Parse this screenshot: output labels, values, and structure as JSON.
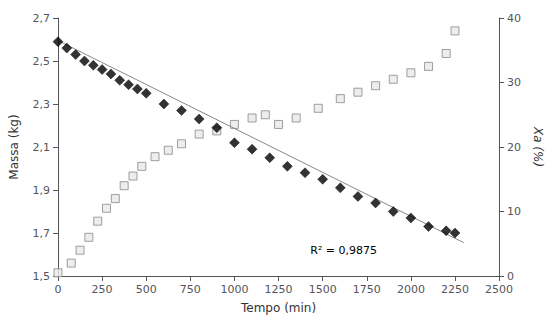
{
  "chart_data": {
    "type": "scatter",
    "xlabel": "Tempo (min)",
    "ylabel": "Massa (kg)",
    "y2label": "Xa (%)",
    "xlim": [
      0,
      2500
    ],
    "xticks": [
      0,
      250,
      500,
      750,
      1000,
      1250,
      1500,
      1750,
      2000,
      2250,
      2500
    ],
    "ylim": [
      1.5,
      2.7
    ],
    "yticks": [
      {
        "value": 1.5,
        "label": "1,5"
      },
      {
        "value": 1.7,
        "label": "1,7"
      },
      {
        "value": 1.9,
        "label": "1,9"
      },
      {
        "value": 2.1,
        "label": "2,1"
      },
      {
        "value": 2.3,
        "label": "2,3"
      },
      {
        "value": 2.5,
        "label": "2,5"
      },
      {
        "value": 2.7,
        "label": "2,7"
      }
    ],
    "y2lim": [
      0,
      40
    ],
    "y2ticks": [
      0,
      10,
      20,
      30,
      40
    ],
    "grid": false,
    "series": [
      {
        "type": "scatter",
        "axis": "y2",
        "marker": "square",
        "color": "#e8e8e8",
        "x": [
          0,
          75,
          125,
          175,
          225,
          275,
          325,
          375,
          425,
          475,
          550,
          625,
          700,
          800,
          900,
          1000,
          1100,
          1175,
          1250,
          1350,
          1475,
          1600,
          1700,
          1800,
          1900,
          2000,
          2100,
          2200,
          2250
        ],
        "values": [
          0.5,
          2.0,
          4.0,
          6.0,
          8.5,
          10.5,
          12.0,
          14.0,
          15.5,
          17.0,
          18.5,
          19.5,
          20.5,
          22.0,
          22.5,
          23.5,
          24.5,
          25.0,
          23.5,
          24.5,
          26.0,
          27.5,
          28.5,
          29.5,
          30.5,
          31.5,
          32.5,
          34.5,
          38.0
        ]
      },
      {
        "type": "line",
        "marker": "none",
        "line_style": "solid",
        "color": "#888888",
        "x": [
          0,
          2300
        ],
        "values": [
          2.595,
          1.655
        ]
      },
      {
        "type": "scatter",
        "marker": "diamond",
        "color": "#000000",
        "x": [
          0,
          50,
          100,
          150,
          200,
          250,
          300,
          350,
          400,
          450,
          500,
          600,
          700,
          800,
          900,
          1000,
          1100,
          1200,
          1300,
          1400,
          1500,
          1600,
          1700,
          1800,
          1900,
          2000,
          2100,
          2200,
          2250
        ],
        "values": [
          2.59,
          2.56,
          2.53,
          2.5,
          2.48,
          2.46,
          2.44,
          2.41,
          2.39,
          2.37,
          2.35,
          2.3,
          2.27,
          2.23,
          2.19,
          2.12,
          2.09,
          2.05,
          2.01,
          1.98,
          1.95,
          1.91,
          1.87,
          1.84,
          1.8,
          1.77,
          1.73,
          1.71,
          1.7
        ]
      }
    ],
    "annotations": [
      {
        "text": "R² = 0,9875",
        "x": 1430,
        "y": 1.595
      }
    ]
  }
}
